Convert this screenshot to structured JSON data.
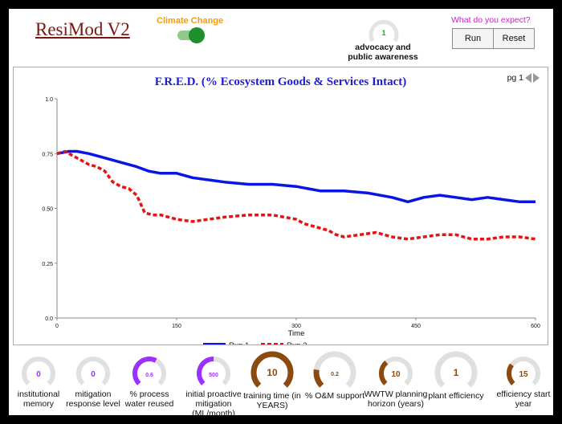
{
  "header": {
    "app_title": "ResiMod V2",
    "climate_change_label": "Climate Change",
    "climate_change_on": true,
    "advocacy_value": "1",
    "advocacy_label_line1": "advocacy and",
    "advocacy_label_line2": "public awareness",
    "expect_prompt": "What do you expect?",
    "run_label": "Run",
    "reset_label": "Reset"
  },
  "chart_panel": {
    "page_label": "pg 1"
  },
  "chart_data": {
    "type": "line",
    "title": "F.R.E.D. (% Ecosystem Goods & Services Intact)",
    "xlabel": "Time",
    "ylabel": "",
    "xlim": [
      0,
      600
    ],
    "ylim": [
      0,
      1
    ],
    "xticks": [
      0,
      150,
      300,
      450,
      600
    ],
    "yticks": [
      0,
      0.25,
      0.5,
      0.75,
      1.0
    ],
    "xtick_labels": [
      "0",
      "150",
      "300",
      "450",
      "600"
    ],
    "ytick_labels": [
      "0.0",
      "0.25",
      "0.50",
      "0.75",
      "1.0"
    ],
    "legend_position": "bottom-center",
    "colors": {
      "Run 1": "#0a14e6",
      "Run 2": "#e41414"
    },
    "series": [
      {
        "name": "Run 1",
        "style": "solid",
        "x": [
          0,
          15,
          25,
          40,
          60,
          80,
          100,
          115,
          130,
          150,
          170,
          190,
          210,
          240,
          270,
          300,
          330,
          360,
          390,
          420,
          440,
          460,
          480,
          500,
          520,
          540,
          560,
          580,
          600
        ],
        "values": [
          0.75,
          0.76,
          0.76,
          0.75,
          0.73,
          0.71,
          0.69,
          0.67,
          0.66,
          0.66,
          0.64,
          0.63,
          0.62,
          0.61,
          0.61,
          0.6,
          0.58,
          0.58,
          0.57,
          0.55,
          0.53,
          0.55,
          0.56,
          0.55,
          0.54,
          0.55,
          0.54,
          0.53,
          0.53
        ]
      },
      {
        "name": "Run 2",
        "style": "dashed",
        "x": [
          0,
          10,
          20,
          30,
          40,
          50,
          60,
          70,
          80,
          90,
          100,
          110,
          120,
          130,
          150,
          170,
          190,
          210,
          240,
          270,
          300,
          310,
          320,
          330,
          340,
          350,
          360,
          380,
          400,
          420,
          440,
          460,
          480,
          500,
          520,
          540,
          560,
          580,
          600
        ],
        "values": [
          0.75,
          0.76,
          0.74,
          0.72,
          0.7,
          0.69,
          0.67,
          0.62,
          0.6,
          0.59,
          0.56,
          0.48,
          0.47,
          0.47,
          0.45,
          0.44,
          0.45,
          0.46,
          0.47,
          0.47,
          0.45,
          0.43,
          0.42,
          0.41,
          0.4,
          0.38,
          0.37,
          0.38,
          0.39,
          0.37,
          0.36,
          0.37,
          0.38,
          0.38,
          0.36,
          0.36,
          0.37,
          0.37,
          0.36
        ]
      }
    ]
  },
  "gauges": [
    {
      "id": "institutional-memory",
      "value": "0",
      "fill": 0.0,
      "color": "#9b30ff",
      "label_line1": "institutional",
      "label_line2": "memory",
      "size": "small"
    },
    {
      "id": "mitigation-response-level",
      "value": "0",
      "fill": 0.0,
      "color": "#9b30ff",
      "label_line1": "mitigation",
      "label_line2": "response level",
      "size": "small"
    },
    {
      "id": "process-water-reused",
      "value": "0.6",
      "fill": 0.6,
      "color": "#9b30ff",
      "label_line1": "% process",
      "label_line2": "water reused",
      "size": "small"
    },
    {
      "id": "initial-proactive-mitigation",
      "value": "500",
      "fill": 0.5,
      "color": "#9b30ff",
      "label_line1": "initial proactive",
      "label_line2": "mitigation (ML/month)",
      "size": "small"
    },
    {
      "id": "training-time",
      "value": "10",
      "fill": 1.0,
      "color": "#8b4a0f",
      "label_line1": "training time (in",
      "label_line2": "YEARS)",
      "size": "large"
    },
    {
      "id": "om-support",
      "value": "0.2",
      "fill": 0.2,
      "color": "#8b4a0f",
      "label_line1": "% O&M support",
      "label_line2": "",
      "size": "large"
    },
    {
      "id": "wwtw-planning-horizon",
      "value": "10",
      "fill": 0.35,
      "color": "#8b4a0f",
      "label_line1": "WWTW planning",
      "label_line2": "horizon (years)",
      "size": "small"
    },
    {
      "id": "plant-efficiency",
      "value": "1",
      "fill": 0.0,
      "color": "#8b4a0f",
      "label_line1": "plant efficiency",
      "label_line2": "",
      "size": "large"
    },
    {
      "id": "efficiency-start-year",
      "value": "15",
      "fill": 0.3,
      "color": "#8b4a0f",
      "label_line1": "efficiency start",
      "label_line2": "year",
      "size": "small"
    }
  ]
}
